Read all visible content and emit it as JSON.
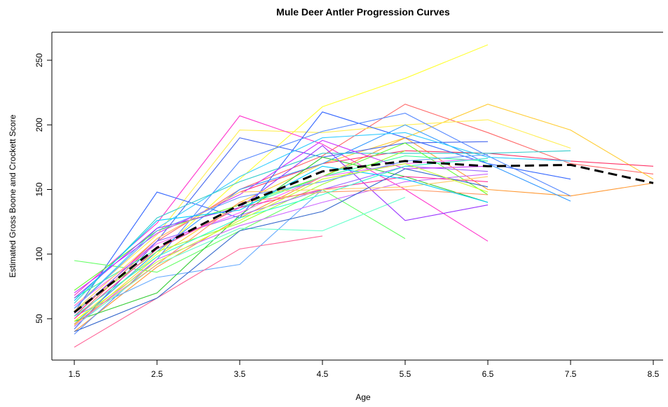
{
  "chart_data": {
    "type": "line",
    "title": "Mule Deer Antler Progression Curves",
    "xlabel": "Age",
    "ylabel": "Estimated Gross Boone and Crockett Score",
    "xlim": [
      1.5,
      8.5
    ],
    "ylim": [
      14,
      270
    ],
    "x_ticks": [
      1.5,
      2.5,
      3.5,
      4.5,
      5.5,
      6.5,
      7.5,
      8.5
    ],
    "x_tick_labels": [
      "1.5",
      "2.5",
      "3.5",
      "4.5",
      "5.5",
      "6.5",
      "7.5",
      "8.5"
    ],
    "y_ticks": [
      50,
      100,
      150,
      200,
      250
    ],
    "y_tick_labels": [
      "50",
      "100",
      "150",
      "200",
      "250"
    ],
    "grid": false,
    "legend": "none",
    "average_series": {
      "style": "black dashed",
      "x": [
        1.5,
        2.5,
        3.5,
        4.5,
        5.5,
        6.5,
        7.5,
        8.5
      ],
      "y": [
        55,
        105,
        138,
        164,
        172,
        168,
        169,
        155
      ]
    },
    "series": [
      {
        "color": "#ffff33",
        "x": [
          1.5,
          2.5,
          3.5,
          4.5,
          5.5,
          6.5
        ],
        "y": [
          48,
          100,
          158,
          214,
          236,
          262
        ]
      },
      {
        "color": "#ff6666",
        "x": [
          1.5,
          2.5,
          3.5,
          4.5,
          5.5,
          6.5,
          7.5,
          8.5
        ],
        "y": [
          50,
          110,
          150,
          176,
          216,
          194,
          170,
          162
        ]
      },
      {
        "color": "#ffcc33",
        "x": [
          1.5,
          2.5,
          3.5,
          4.5,
          5.5,
          6.5,
          7.5,
          8.5
        ],
        "y": [
          45,
          98,
          140,
          170,
          190,
          216,
          196,
          158
        ]
      },
      {
        "color": "#ff9933",
        "x": [
          1.5,
          2.5,
          3.5,
          4.5,
          5.5,
          6.5,
          7.5,
          8.5
        ],
        "y": [
          40,
          90,
          128,
          160,
          190,
          150,
          145,
          155
        ]
      },
      {
        "color": "#ff3366",
        "x": [
          1.5,
          2.5,
          3.5,
          4.5,
          5.5,
          6.5,
          7.5,
          8.5
        ],
        "y": [
          52,
          112,
          148,
          170,
          180,
          178,
          172,
          168
        ]
      },
      {
        "color": "#ffee55",
        "x": [
          1.5,
          2.5,
          3.5,
          4.5,
          5.5,
          6.5,
          7.5
        ],
        "y": [
          60,
          115,
          196,
          194,
          200,
          204,
          182
        ]
      },
      {
        "color": "#ff33cc",
        "x": [
          1.5,
          2.5,
          3.5,
          4.5,
          5.5,
          6.5
        ],
        "y": [
          68,
          124,
          207,
          185,
          150,
          110
        ]
      },
      {
        "color": "#3366ff",
        "x": [
          1.5,
          2.5,
          3.5,
          4.5,
          5.5,
          6.5,
          7.5
        ],
        "y": [
          55,
          148,
          128,
          210,
          190,
          170,
          158
        ]
      },
      {
        "color": "#4466ee",
        "x": [
          1.5,
          2.5,
          3.5,
          4.5,
          5.5,
          6.5
        ],
        "y": [
          42,
          110,
          190,
          175,
          186,
          187
        ]
      },
      {
        "color": "#5588ff",
        "x": [
          1.5,
          2.5,
          3.5,
          4.5,
          5.5,
          6.5,
          7.5
        ],
        "y": [
          38,
          96,
          172,
          195,
          209,
          176,
          145
        ]
      },
      {
        "color": "#3399ff",
        "x": [
          1.5,
          2.5,
          3.5,
          4.5,
          5.5,
          6.5,
          7.5
        ],
        "y": [
          46,
          102,
          150,
          170,
          200,
          170,
          141
        ]
      },
      {
        "color": "#66aaff",
        "x": [
          1.5,
          2.5,
          3.5,
          4.5
        ],
        "y": [
          52,
          82,
          92,
          150
        ]
      },
      {
        "color": "#33ccff",
        "x": [
          1.5,
          2.5,
          3.5,
          4.5,
          5.5,
          6.5,
          7.5
        ],
        "y": [
          58,
          120,
          160,
          190,
          194,
          175,
          172
        ]
      },
      {
        "color": "#33cccc",
        "x": [
          1.5,
          2.5,
          3.5,
          4.5,
          5.5,
          6.5,
          7.5
        ],
        "y": [
          62,
          128,
          156,
          178,
          178,
          178,
          180
        ]
      },
      {
        "color": "#33ff99",
        "x": [
          1.5,
          2.5,
          3.5,
          4.5,
          5.5,
          6.5
        ],
        "y": [
          66,
          104,
          136,
          160,
          176,
          172
        ]
      },
      {
        "color": "#66ff66",
        "x": [
          1.5,
          2.5,
          3.5,
          4.5,
          5.5
        ],
        "y": [
          95,
          86,
          118,
          150,
          112
        ]
      },
      {
        "color": "#33cc33",
        "x": [
          1.5,
          2.5,
          3.5,
          4.5,
          5.5,
          6.5
        ],
        "y": [
          48,
          70,
          130,
          175,
          160,
          140
        ]
      },
      {
        "color": "#99ff33",
        "x": [
          1.5,
          2.5,
          3.5,
          4.5,
          5.5
        ],
        "y": [
          56,
          102,
          124,
          154,
          180
        ]
      },
      {
        "color": "#66ff33",
        "x": [
          1.5,
          2.5,
          3.5,
          4.5,
          5.5,
          6.5
        ],
        "y": [
          72,
          118,
          138,
          160,
          186,
          146
        ]
      },
      {
        "color": "#66ffcc",
        "x": [
          1.5,
          2.5,
          3.5,
          4.5,
          5.5
        ],
        "y": [
          44,
          92,
          120,
          118,
          144
        ]
      },
      {
        "color": "#9933ff",
        "x": [
          1.5,
          2.5,
          3.5,
          4.5,
          5.5,
          6.5
        ],
        "y": [
          66,
          120,
          136,
          184,
          126,
          138
        ]
      },
      {
        "color": "#9966ff",
        "x": [
          1.5,
          2.5,
          3.5,
          4.5,
          5.5,
          6.5
        ],
        "y": [
          54,
          110,
          130,
          150,
          168,
          164
        ]
      },
      {
        "color": "#cc66ff",
        "x": [
          1.5,
          2.5,
          3.5,
          4.5,
          5.5,
          6.5
        ],
        "y": [
          44,
          96,
          122,
          140,
          156,
          162
        ]
      },
      {
        "color": "#cc33ff",
        "x": [
          1.5,
          2.5,
          3.5,
          4.5,
          5.5,
          6.5
        ],
        "y": [
          70,
          116,
          146,
          188,
          166,
          168
        ]
      },
      {
        "color": "#ff66ff",
        "x": [
          1.5,
          2.5,
          3.5,
          4.5,
          5.5,
          6.5
        ],
        "y": [
          60,
          108,
          132,
          160,
          170,
          174
        ]
      },
      {
        "color": "#ff6699",
        "x": [
          1.5,
          2.5,
          3.5,
          4.5
        ],
        "y": [
          28,
          66,
          104,
          114
        ]
      },
      {
        "color": "#ff3399",
        "x": [
          1.5,
          2.5,
          3.5,
          4.5,
          5.5,
          6.5
        ],
        "y": [
          50,
          104,
          136,
          150,
          160,
          156
        ]
      },
      {
        "color": "#ff9966",
        "x": [
          1.5,
          2.5,
          3.5,
          4.5,
          5.5,
          6.5
        ],
        "y": [
          46,
          92,
          140,
          148,
          150,
          146
        ]
      },
      {
        "color": "#ffcc66",
        "x": [
          1.5,
          2.5,
          3.5,
          4.5,
          5.5,
          6.5
        ],
        "y": [
          56,
          112,
          148,
          150,
          152,
          160
        ]
      },
      {
        "color": "#3366cc",
        "x": [
          1.5,
          2.5,
          3.5,
          4.5,
          5.5,
          6.5
        ],
        "y": [
          40,
          66,
          118,
          133,
          166,
          152
        ]
      },
      {
        "color": "#6699ff",
        "x": [
          1.5,
          2.5,
          3.5,
          4.5,
          5.5,
          6.5
        ],
        "y": [
          58,
          118,
          144,
          156,
          172,
          177
        ]
      },
      {
        "color": "#00ccff",
        "x": [
          1.5,
          2.5,
          3.5,
          4.5,
          5.5,
          6.5
        ],
        "y": [
          64,
          126,
          134,
          168,
          158,
          140
        ]
      },
      {
        "color": "#33ffcc",
        "x": [
          1.5,
          2.5,
          3.5,
          4.5,
          5.5,
          6.5
        ],
        "y": [
          52,
          98,
          128,
          146,
          168,
          174
        ]
      },
      {
        "color": "#ccff33",
        "x": [
          1.5,
          2.5,
          3.5,
          4.5,
          5.5,
          6.5
        ],
        "y": [
          48,
          94,
          126,
          158,
          170,
          148
        ]
      }
    ]
  }
}
